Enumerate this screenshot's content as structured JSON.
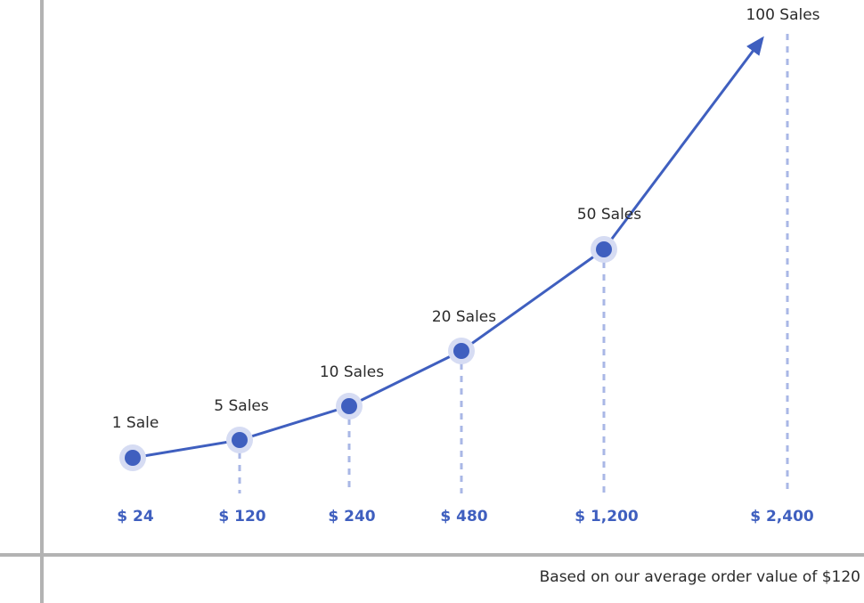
{
  "chart_data": {
    "type": "line",
    "x": [
      "$ 24",
      "$ 120",
      "$ 240",
      "$ 480",
      "$ 1,200",
      "$ 2,400"
    ],
    "points": [
      {
        "label": "1 Sale",
        "revenue": 24
      },
      {
        "label": "5 Sales",
        "revenue": 120
      },
      {
        "label": "10 Sales",
        "revenue": 240
      },
      {
        "label": "20 Sales",
        "revenue": 480
      },
      {
        "label": "50 Sales",
        "revenue": 1200
      },
      {
        "label": "100 Sales",
        "revenue": 2400
      }
    ],
    "line_color": "#3f5fbf",
    "marker_halo_color": "#d6dcf3",
    "guide_color": "#a9b7e6",
    "axis_color": "#b3b3b3",
    "last_point_style": "arrow"
  },
  "footnote": "Based on our average order value of $120"
}
